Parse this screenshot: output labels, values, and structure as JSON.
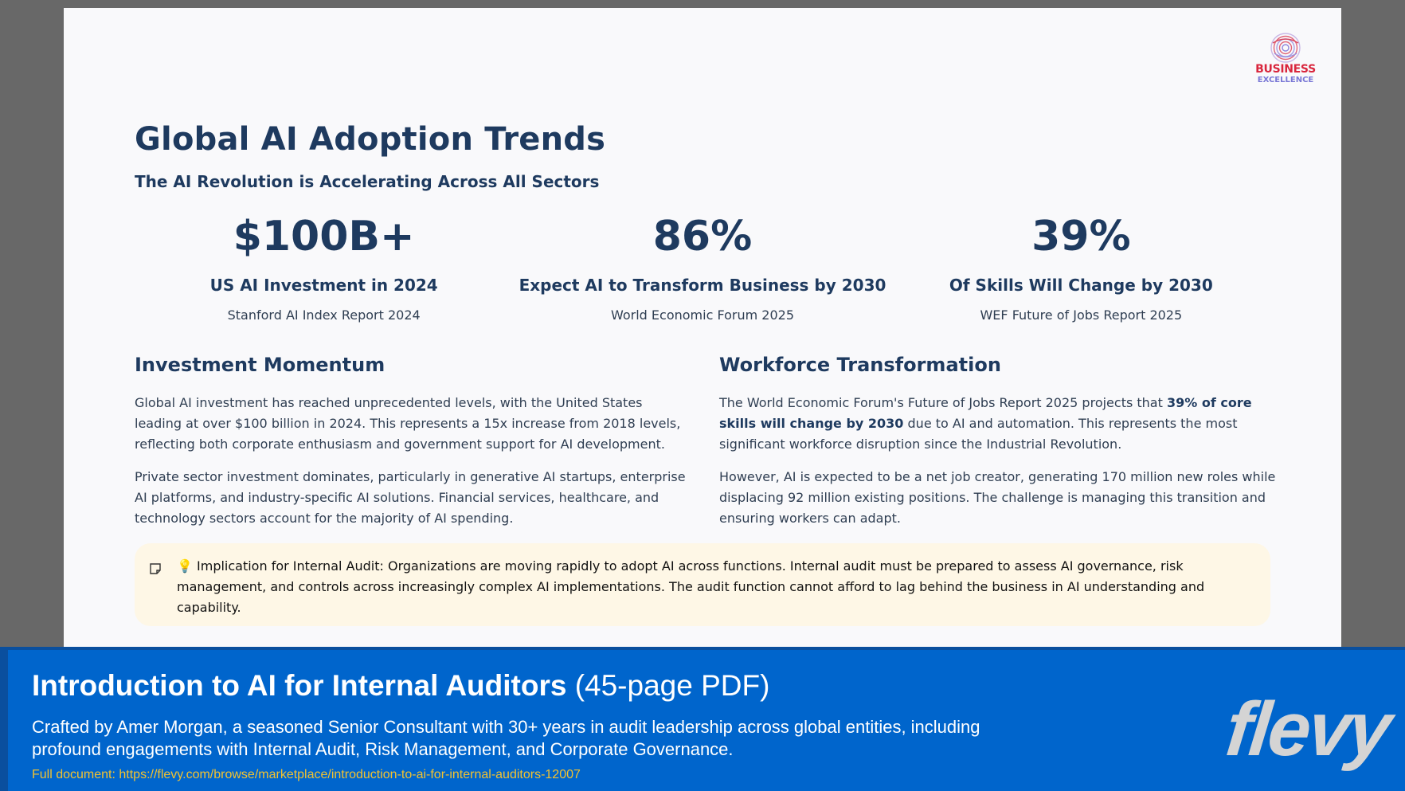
{
  "logo": {
    "line1": "BUSINESS",
    "line2": "EXCELLENCE"
  },
  "slide": {
    "title": "Global AI Adoption Trends",
    "subtitle": "The AI Revolution is Accelerating Across All Sectors",
    "stats": [
      {
        "value": "$100B+",
        "label": "US AI Investment in 2024",
        "source": "Stanford AI Index Report 2024"
      },
      {
        "value": "86%",
        "label": "Expect AI to Transform Business by 2030",
        "source": "World Economic Forum 2025"
      },
      {
        "value": "39%",
        "label": "Of Skills Will Change by 2030",
        "source": "WEF Future of Jobs Report 2025"
      }
    ],
    "investment": {
      "heading": "Investment Momentum",
      "p1": "Global AI investment has reached unprecedented levels, with the United States leading at over $100 billion in 2024. This represents a 15x increase from 2018 levels, reflecting both corporate enthusiasm and government support for AI development.",
      "p2": "Private sector investment dominates, particularly in generative AI startups, enterprise AI platforms, and industry-specific AI solutions. Financial services, healthcare, and technology sectors account for the majority of AI spending."
    },
    "workforce": {
      "heading": "Workforce Transformation",
      "p1_before": "The World Economic Forum's Future of Jobs Report 2025 projects that ",
      "p1_bold": "39% of core skills will change by 2030",
      "p1_after": " due to AI and automation. This represents the most significant workforce disruption since the Industrial Revolution.",
      "p2": "However, AI is expected to be a net job creator, generating 170 million new roles while displacing 92 million existing positions. The challenge is managing this transition and ensuring workers can adapt."
    },
    "callout": {
      "icon": "note-icon",
      "text": "💡 Implication for Internal Audit: Organizations are moving rapidly to adopt AI across functions. Internal audit must be prepared to assess AI governance, risk management, and controls across increasingly complex AI implementations. The audit function cannot afford to lag behind the business in AI understanding and capability."
    }
  },
  "banner": {
    "title": "Introduction to AI for Internal Auditors",
    "title_suffix": "(45-page PDF)",
    "description": "Crafted by Amer Morgan, a seasoned Senior Consultant with 30+ years in audit leadership across global entities, including profound engagements with Internal Audit, Risk Management, and Corporate Governance.",
    "link": "Full document: https://flevy.com/browse/marketplace/introduction-to-ai-for-internal-auditors-12007",
    "brand": "flevy"
  },
  "colors": {
    "heading": "#1e3a5f",
    "callout_bg": "#fef7e6",
    "banner_bg": "#0065cc",
    "link": "#f2c230",
    "logo_red": "#d9263d",
    "logo_purple": "#7a78d6"
  }
}
